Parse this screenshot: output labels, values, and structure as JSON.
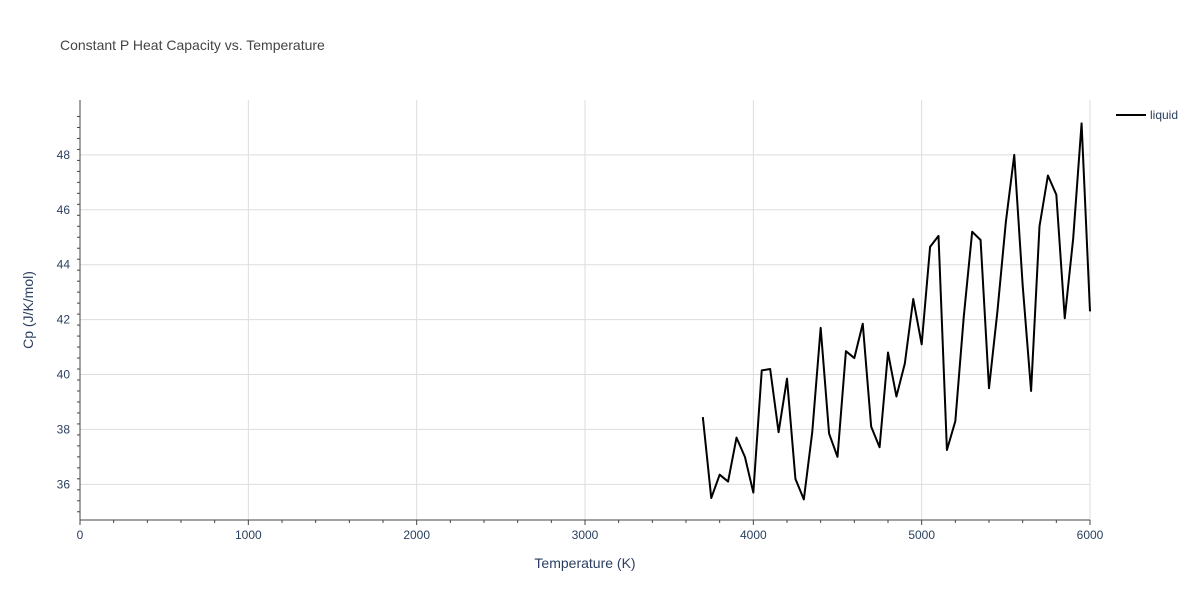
{
  "chart_data": {
    "type": "line",
    "title": "Constant P Heat Capacity vs. Temperature",
    "xlabel": "Temperature (K)",
    "ylabel": "Cp (J/K/mol)",
    "xlim": [
      0,
      6000
    ],
    "ylim": [
      34.7,
      50
    ],
    "xticks": [
      0,
      1000,
      2000,
      3000,
      4000,
      5000,
      6000
    ],
    "yticks": [
      36,
      38,
      40,
      42,
      44,
      46,
      48
    ],
    "grid": true,
    "legend": "top-right",
    "series": [
      {
        "name": "liquid",
        "color": "#000000",
        "x": [
          3700,
          3750,
          3800,
          3850,
          3900,
          3950,
          4000,
          4050,
          4100,
          4150,
          4200,
          4250,
          4300,
          4350,
          4400,
          4450,
          4500,
          4550,
          4600,
          4650,
          4700,
          4750,
          4800,
          4850,
          4900,
          4950,
          5000,
          5050,
          5100,
          5150,
          5200,
          5250,
          5300,
          5350,
          5400,
          5450,
          5500,
          5550,
          5600,
          5650,
          5700,
          5750,
          5800,
          5850,
          5900,
          5950,
          6000
        ],
        "y": [
          38.45,
          35.5,
          36.35,
          36.1,
          37.7,
          37.0,
          35.7,
          40.15,
          40.2,
          37.9,
          39.85,
          36.2,
          35.45,
          37.9,
          41.7,
          37.85,
          37.0,
          40.85,
          40.6,
          41.85,
          38.1,
          37.35,
          40.8,
          39.2,
          40.4,
          42.75,
          41.1,
          44.65,
          45.05,
          37.25,
          38.3,
          42.1,
          45.2,
          44.9,
          39.5,
          42.3,
          45.55,
          48.0,
          43.25,
          39.4,
          45.4,
          47.25,
          46.55,
          42.05,
          44.95,
          49.15,
          42.3
        ]
      }
    ]
  }
}
